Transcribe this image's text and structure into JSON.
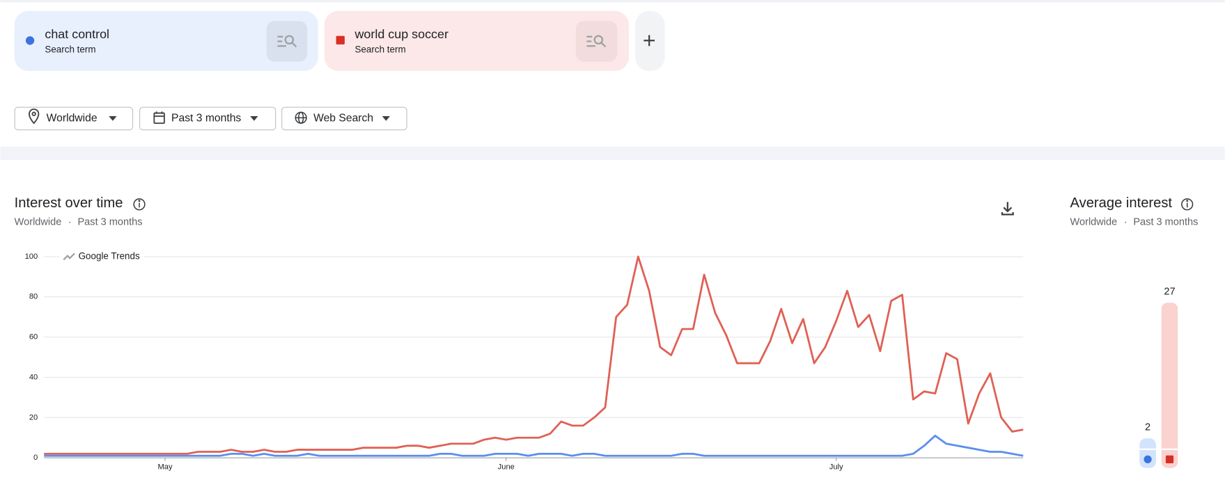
{
  "term_types": [
    "Search term",
    "Search term"
  ],
  "filters": [
    "Worldwide",
    "Past 3 months",
    "Web Search"
  ],
  "chart_data": [
    {
      "type": "line",
      "title": "Interest over time",
      "subtitle": [
        "Worldwide",
        "Past 3 months"
      ],
      "watermark": "Google Trends",
      "categories": [
        null,
        null,
        null,
        null,
        null,
        null,
        null,
        null,
        null,
        null,
        null,
        "May",
        null,
        null,
        null,
        null,
        null,
        null,
        null,
        null,
        null,
        null,
        null,
        null,
        null,
        null,
        null,
        null,
        null,
        null,
        null,
        null,
        null,
        null,
        null,
        null,
        null,
        null,
        null,
        null,
        null,
        null,
        "June",
        null,
        null,
        null,
        null,
        null,
        null,
        null,
        null,
        null,
        null,
        null,
        null,
        null,
        null,
        null,
        null,
        null,
        null,
        null,
        null,
        null,
        null,
        null,
        null,
        null,
        null,
        null,
        null,
        null,
        "July",
        null,
        null,
        null,
        null,
        null,
        null,
        null,
        null,
        null,
        null,
        null,
        null,
        null,
        null,
        null,
        null,
        null
      ],
      "series": [
        {
          "name": "chat control",
          "color": "#5b8def",
          "values": [
            1,
            1,
            1,
            1,
            1,
            1,
            1,
            1,
            1,
            1,
            1,
            1,
            1,
            1,
            1,
            1,
            1,
            2,
            2,
            1,
            2,
            1,
            1,
            1,
            2,
            1,
            1,
            1,
            1,
            1,
            1,
            1,
            1,
            1,
            1,
            1,
            2,
            2,
            1,
            1,
            1,
            2,
            2,
            2,
            1,
            2,
            2,
            2,
            1,
            2,
            2,
            1,
            1,
            1,
            1,
            1,
            1,
            1,
            2,
            2,
            1,
            1,
            1,
            1,
            1,
            1,
            1,
            1,
            1,
            1,
            1,
            1,
            1,
            1,
            1,
            1,
            1,
            1,
            1,
            2,
            6,
            11,
            7,
            6,
            5,
            4,
            3,
            3,
            2,
            1
          ]
        },
        {
          "name": "world cup soccer",
          "color": "#e06055",
          "values": [
            2,
            2,
            2,
            2,
            2,
            2,
            2,
            2,
            2,
            2,
            2,
            2,
            2,
            2,
            3,
            3,
            3,
            4,
            3,
            3,
            4,
            3,
            3,
            4,
            4,
            4,
            4,
            4,
            4,
            5,
            5,
            5,
            5,
            6,
            6,
            5,
            6,
            7,
            7,
            7,
            9,
            10,
            9,
            10,
            10,
            10,
            12,
            18,
            16,
            16,
            20,
            25,
            70,
            76,
            100,
            83,
            55,
            51,
            64,
            64,
            91,
            72,
            61,
            47,
            47,
            47,
            58,
            74,
            57,
            69,
            47,
            55,
            68,
            83,
            65,
            71,
            53,
            78,
            81,
            29,
            33,
            32,
            52,
            49,
            17,
            32,
            42,
            20,
            13,
            14
          ]
        }
      ],
      "ylim": [
        0,
        100
      ],
      "yticks": [
        0,
        20,
        40,
        60,
        80,
        100
      ],
      "grid": true
    },
    {
      "type": "bar",
      "title": "Average interest",
      "subtitle": [
        "Worldwide",
        "Past 3 months"
      ],
      "values": [
        2,
        27
      ],
      "colors": [
        "#d2e3fc",
        "#fad2cf"
      ],
      "marker_colors": [
        "#3c73e0",
        "#d93025"
      ]
    }
  ]
}
